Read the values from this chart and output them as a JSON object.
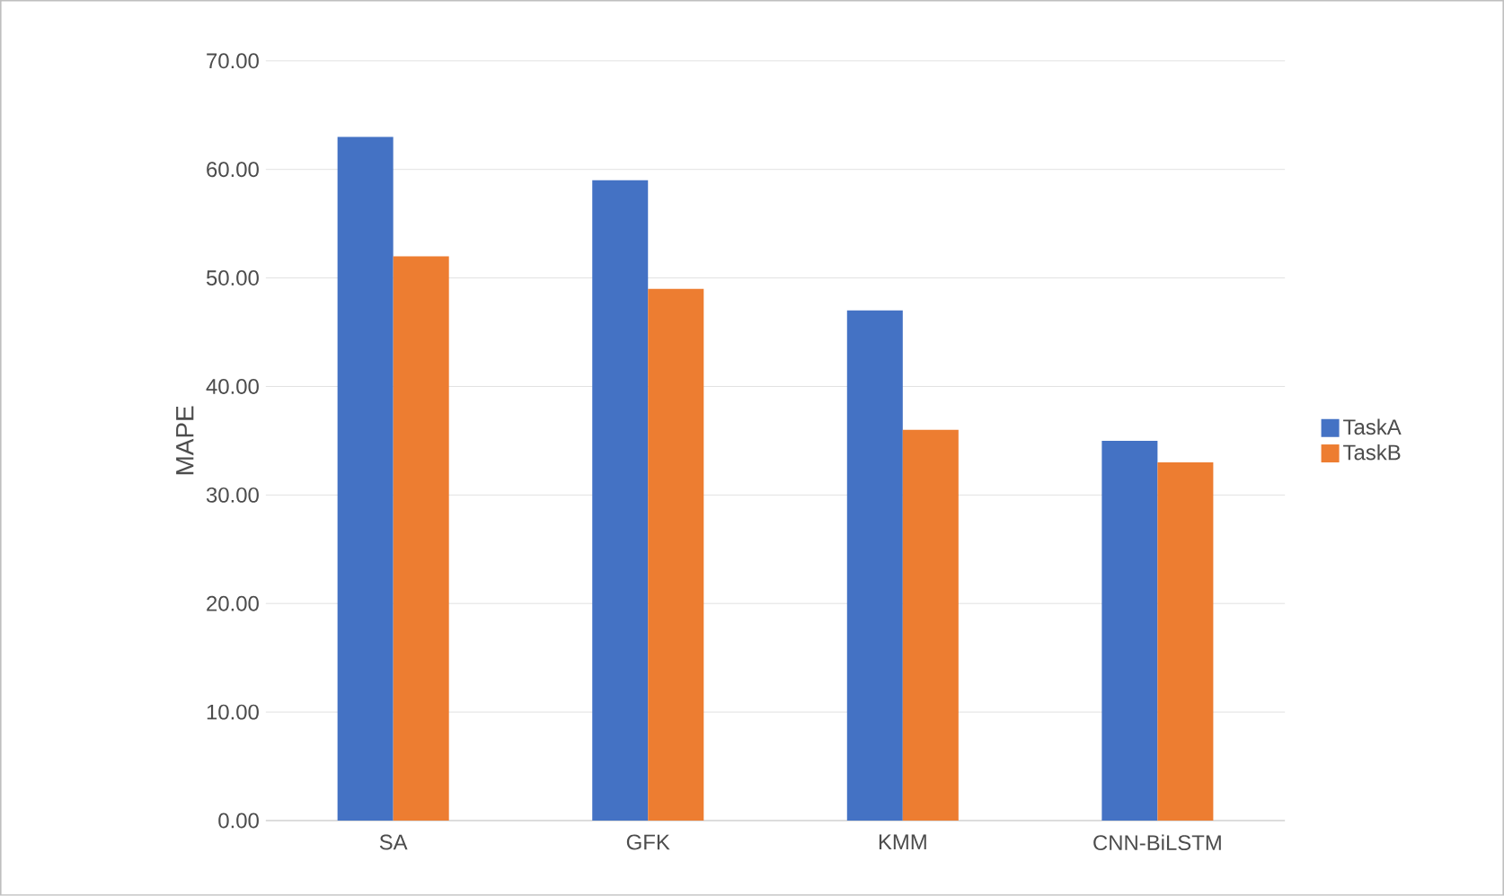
{
  "chart_data": {
    "type": "bar",
    "ylabel": "MAPE",
    "categories": [
      "SA",
      "GFK",
      "KMM",
      "CNN-BiLSTM"
    ],
    "series": [
      {
        "name": "TaskA",
        "color": "#4472c4",
        "values": [
          63,
          59,
          47,
          35
        ]
      },
      {
        "name": "TaskB",
        "color": "#ed7d31",
        "values": [
          52,
          49,
          36,
          33
        ]
      }
    ],
    "ylim": [
      0,
      70
    ],
    "yticks": [
      {
        "value": 0,
        "label": "0.00"
      },
      {
        "value": 10,
        "label": "10.00"
      },
      {
        "value": 20,
        "label": "20.00"
      },
      {
        "value": 30,
        "label": "30.00"
      },
      {
        "value": 40,
        "label": "40.00"
      },
      {
        "value": 50,
        "label": "50.00"
      },
      {
        "value": 60,
        "label": "60.00"
      },
      {
        "value": 70,
        "label": "70.00"
      }
    ],
    "grid": "y",
    "legend": "right"
  }
}
